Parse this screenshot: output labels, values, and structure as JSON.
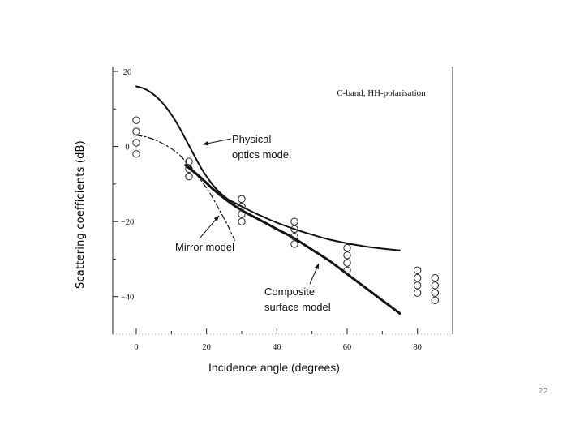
{
  "chart_data": {
    "type": "line",
    "title": "",
    "annotation": "C-band, HH-polarisation",
    "xlabel": "Incidence angle (degrees)",
    "ylabel": "Scattering   coefficients (dB)",
    "xlim": [
      0,
      90
    ],
    "ylim": [
      -50,
      20
    ],
    "x_ticks": [
      0,
      20,
      40,
      60,
      80
    ],
    "y_ticks": [
      20,
      0,
      -20,
      -40
    ],
    "y_tick_labels": [
      "20",
      "0",
      "−20",
      "−40"
    ],
    "grid": false,
    "series": [
      {
        "name": "Physical optics model",
        "style": "solid-thin",
        "x": [
          0,
          2,
          4,
          6,
          8,
          10,
          12,
          14,
          16,
          18,
          20,
          22,
          24,
          26,
          28,
          30,
          33,
          36,
          40,
          45,
          50,
          55,
          60,
          65,
          70,
          75
        ],
        "y": [
          16,
          15.5,
          14.5,
          13,
          11,
          8.5,
          5.5,
          2,
          -1.5,
          -5,
          -8,
          -10.5,
          -12.5,
          -14,
          -15,
          -16,
          -17.4,
          -18.7,
          -20.3,
          -22,
          -23.5,
          -24.8,
          -25.8,
          -26.6,
          -27.2,
          -27.7
        ]
      },
      {
        "name": "Mirror model",
        "style": "dash-dot",
        "x": [
          0,
          3,
          6,
          9,
          12,
          15,
          18,
          21,
          24,
          26,
          28
        ],
        "y": [
          3,
          2.5,
          1.5,
          0,
          -2,
          -5,
          -8.5,
          -12.5,
          -17.5,
          -21,
          -25
        ]
      },
      {
        "name": "Composite surface model",
        "style": "solid-thick",
        "x": [
          14,
          18,
          22,
          26,
          30,
          35,
          40,
          45,
          50,
          55,
          60,
          65,
          70,
          75
        ],
        "y": [
          -5,
          -8,
          -11.5,
          -14.5,
          -17,
          -19.5,
          -22,
          -24.5,
          -27.5,
          -30.5,
          -34,
          -37.5,
          -41,
          -44.5
        ]
      }
    ],
    "measurements": {
      "name": "Measured data",
      "marker": "open-circle",
      "x": [
        0,
        0,
        0,
        0,
        15,
        15,
        15,
        30,
        30,
        30,
        30,
        45,
        45,
        45,
        45,
        60,
        60,
        60,
        60,
        80,
        80,
        80,
        80,
        85,
        85,
        85,
        85
      ],
      "y": [
        7,
        4,
        1,
        -2,
        -4,
        -6,
        -8,
        -14,
        -16,
        -18,
        -20,
        -20,
        -22,
        -24,
        -26,
        -27,
        -29,
        -31,
        -33,
        -33,
        -35,
        -37,
        -39,
        -35,
        -37,
        -39,
        -41
      ]
    },
    "labels": {
      "physical": [
        "Physical",
        "optics model"
      ],
      "mirror": "Mirror model",
      "composite": [
        "Composite",
        "surface model"
      ]
    }
  },
  "page": {
    "number": "22"
  }
}
